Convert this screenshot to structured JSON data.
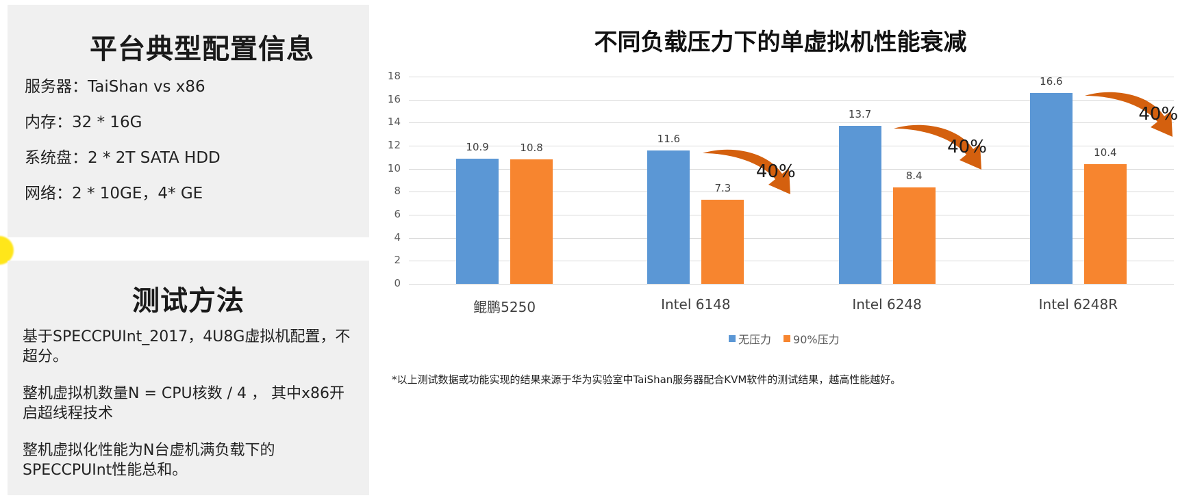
{
  "left": {
    "config": {
      "title": "平台典型配置信息",
      "lines": [
        "服务器：TaiShan vs x86",
        "内存：32 * 16G",
        "系统盘：2 * 2T SATA HDD",
        "网络：2 * 10GE，4* GE"
      ]
    },
    "method": {
      "title": "测试方法",
      "paragraphs": [
        "基于SPECCPUInt_2017，4U8G虚拟机配置，不超分。",
        "整机虚拟机数量N = CPU核数 / 4 ， 其中x86开启超线程技术",
        "整机虚拟化性能为N台虚机满负载下的SPECCPUInt性能总和。"
      ]
    }
  },
  "chart_data": {
    "type": "bar",
    "title": "不同负载压力下的单虚拟机性能衰减",
    "categories": [
      "鲲鹏5250",
      "Intel 6148",
      "Intel 6248",
      "Intel 6248R"
    ],
    "series": [
      {
        "name": "无压力",
        "color": "#5b97d5",
        "values": [
          10.9,
          11.6,
          13.7,
          16.6
        ]
      },
      {
        "name": "90%压力",
        "color": "#f7852f",
        "values": [
          10.8,
          7.3,
          8.4,
          10.4
        ]
      }
    ],
    "yticks": [
      "0",
      "2",
      "4",
      "6",
      "8",
      "10",
      "12",
      "14",
      "16",
      "18"
    ],
    "ylim": [
      0,
      18
    ],
    "xlabel": "",
    "ylabel": "",
    "grid": true,
    "legend_position": "bottom",
    "annotations": [
      {
        "category": "Intel 6148",
        "text": "40%",
        "type": "curved-arrow-down"
      },
      {
        "category": "Intel 6248",
        "text": "40%",
        "type": "curved-arrow-down"
      },
      {
        "category": "Intel 6248R",
        "text": "40%",
        "type": "curved-arrow-down"
      }
    ],
    "arrow_color": "#d4600e"
  },
  "footnote": "*以上测试数据或功能实现的结果来源于华为实验室中TaiShan服务器配合KVM软件的测试结果，越高性能越好。"
}
